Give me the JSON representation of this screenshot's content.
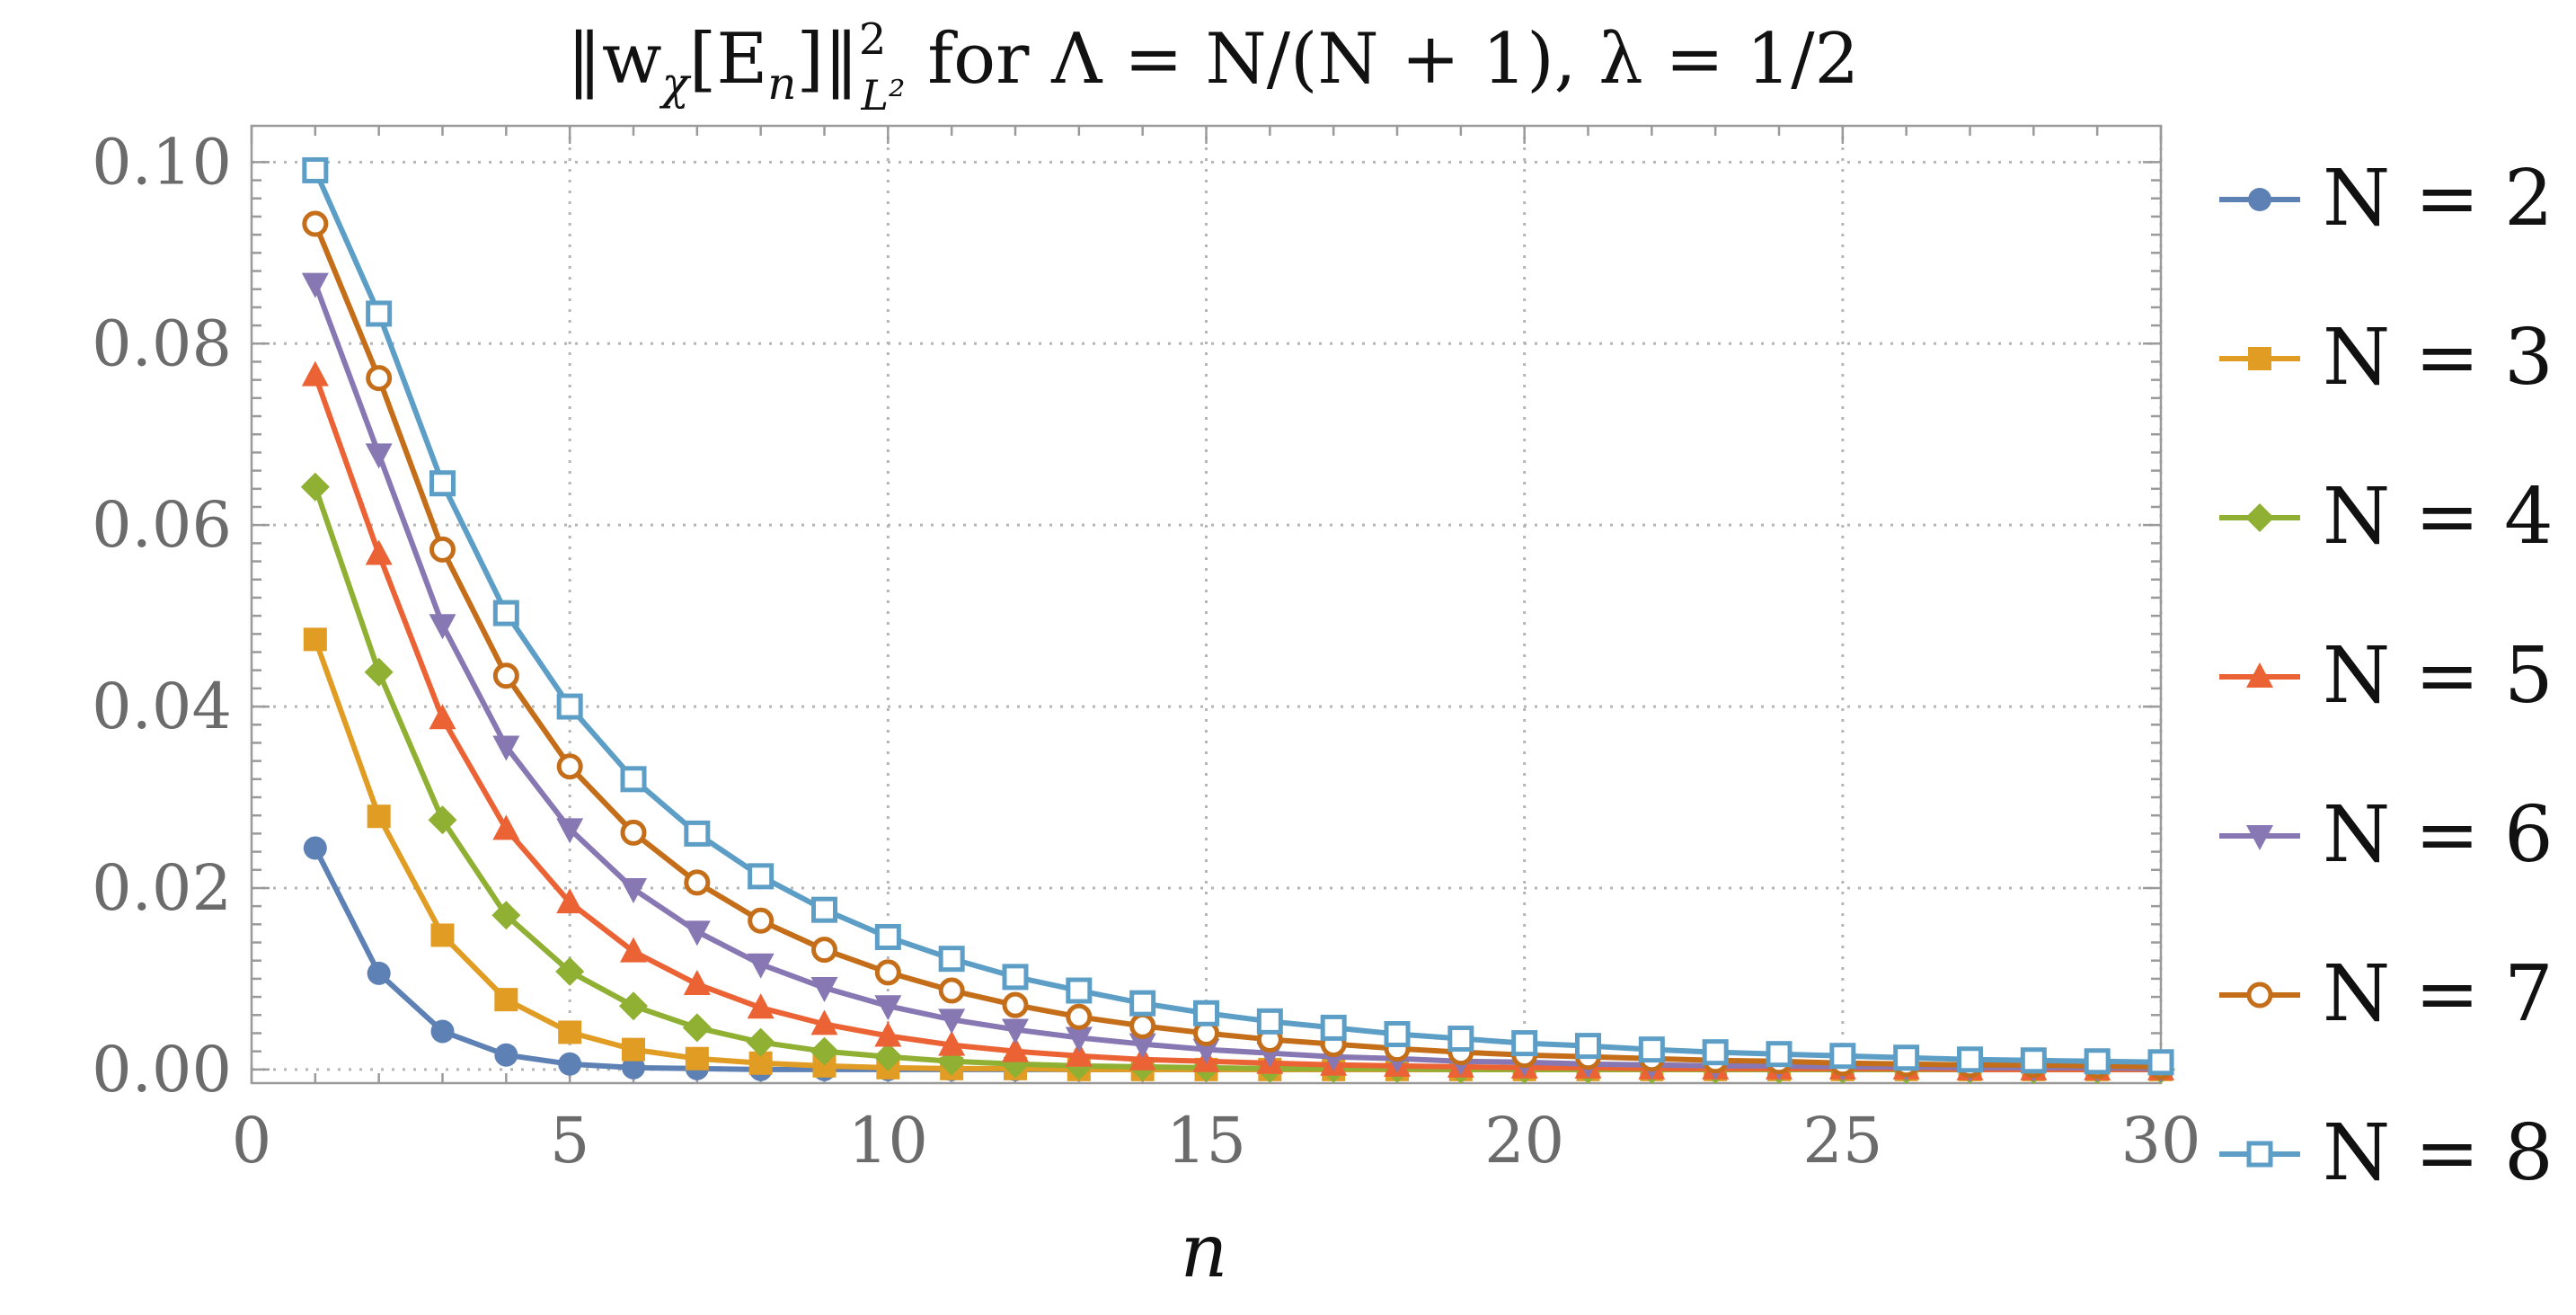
{
  "chart_data": {
    "type": "line",
    "title_parts": {
      "norm": "‖w",
      "chi": "χ",
      "bracket": "[E",
      "n": "n",
      "close": "]‖",
      "sup": "2",
      "sub": "L²",
      "rest": "  for  Λ = N/(N + 1),  λ = 1/2"
    },
    "xlabel": "n",
    "ylabel": "",
    "xlim": [
      0,
      30
    ],
    "ylim": [
      -0.0015,
      0.104
    ],
    "xticks": [
      "0",
      "5",
      "10",
      "15",
      "20",
      "25",
      "30"
    ],
    "yticks": [
      "0.00",
      "0.02",
      "0.04",
      "0.06",
      "0.08",
      "0.10"
    ],
    "grid": true,
    "legend_position": "right",
    "x": [
      1,
      2,
      3,
      4,
      5,
      6,
      7,
      8,
      9,
      10,
      11,
      12,
      13,
      14,
      15,
      16,
      17,
      18,
      19,
      20,
      21,
      22,
      23,
      24,
      25,
      26,
      27,
      28,
      29,
      30
    ],
    "series": [
      {
        "name": "N = 2",
        "color": "#5e81b5",
        "marker": "circle",
        "values": [
          0.0244,
          0.0106,
          0.0042,
          0.0016,
          0.0006,
          0.0002,
          0.0001,
          0.0,
          0.0,
          0.0,
          0.0,
          0.0,
          0.0,
          0.0,
          0.0,
          0.0,
          0.0,
          0.0,
          0.0,
          0.0,
          0.0,
          0.0,
          0.0,
          0.0,
          0.0,
          0.0,
          0.0,
          0.0,
          0.0,
          0.0
        ]
      },
      {
        "name": "N = 3",
        "color": "#e19c24",
        "marker": "square",
        "values": [
          0.0474,
          0.0279,
          0.0148,
          0.0077,
          0.0041,
          0.0022,
          0.0012,
          0.0007,
          0.0004,
          0.0002,
          0.0001,
          0.0001,
          0.0,
          0.0,
          0.0,
          0.0,
          0.0,
          0.0,
          0.0,
          0.0,
          0.0,
          0.0,
          0.0,
          0.0,
          0.0,
          0.0,
          0.0,
          0.0,
          0.0,
          0.0
        ]
      },
      {
        "name": "N = 4",
        "color": "#8fb032",
        "marker": "diamond",
        "values": [
          0.0642,
          0.0438,
          0.0275,
          0.017,
          0.0108,
          0.007,
          0.0046,
          0.003,
          0.002,
          0.0014,
          0.0009,
          0.0006,
          0.0004,
          0.0003,
          0.0002,
          0.0001,
          0.0001,
          0.0001,
          0.0,
          0.0,
          0.0,
          0.0,
          0.0,
          0.0,
          0.0,
          0.0,
          0.0,
          0.0,
          0.0,
          0.0
        ]
      },
      {
        "name": "N = 5",
        "color": "#eb6235",
        "marker": "triangle-up",
        "values": [
          0.0765,
          0.0568,
          0.0387,
          0.0265,
          0.0184,
          0.013,
          0.0094,
          0.0068,
          0.005,
          0.0037,
          0.0027,
          0.002,
          0.0015,
          0.0011,
          0.0009,
          0.0007,
          0.0005,
          0.0004,
          0.0003,
          0.0002,
          0.0002,
          0.0001,
          0.0001,
          0.0001,
          0.0001,
          0.0001,
          0.0,
          0.0,
          0.0,
          0.0
        ]
      },
      {
        "name": "N = 6",
        "color": "#8778b3",
        "marker": "triangle-down",
        "values": [
          0.0866,
          0.0678,
          0.049,
          0.0356,
          0.0265,
          0.0199,
          0.0152,
          0.0116,
          0.009,
          0.007,
          0.0055,
          0.0044,
          0.0035,
          0.0028,
          0.0022,
          0.0018,
          0.0014,
          0.0012,
          0.0009,
          0.0008,
          0.0006,
          0.0005,
          0.0004,
          0.0004,
          0.0003,
          0.0003,
          0.0002,
          0.0002,
          0.0002,
          0.0001
        ]
      },
      {
        "name": "N = 7",
        "color": "#c56e1a",
        "marker": "circle-open",
        "values": [
          0.0932,
          0.0762,
          0.0573,
          0.0434,
          0.0334,
          0.0261,
          0.0206,
          0.0164,
          0.0132,
          0.0107,
          0.0087,
          0.0071,
          0.0058,
          0.0048,
          0.004,
          0.0033,
          0.0028,
          0.0023,
          0.0019,
          0.0016,
          0.0014,
          0.0012,
          0.001,
          0.0009,
          0.0007,
          0.0006,
          0.0005,
          0.0005,
          0.0004,
          0.0003
        ]
      },
      {
        "name": "N = 8",
        "color": "#5d9ec7",
        "marker": "square-open",
        "values": [
          0.0991,
          0.0833,
          0.0646,
          0.0503,
          0.04,
          0.032,
          0.026,
          0.0213,
          0.0176,
          0.0146,
          0.0122,
          0.0102,
          0.0087,
          0.0073,
          0.0062,
          0.0053,
          0.0046,
          0.0039,
          0.0034,
          0.0029,
          0.0026,
          0.0022,
          0.0019,
          0.0017,
          0.0015,
          0.0013,
          0.0011,
          0.001,
          0.0009,
          0.0008
        ]
      }
    ]
  }
}
